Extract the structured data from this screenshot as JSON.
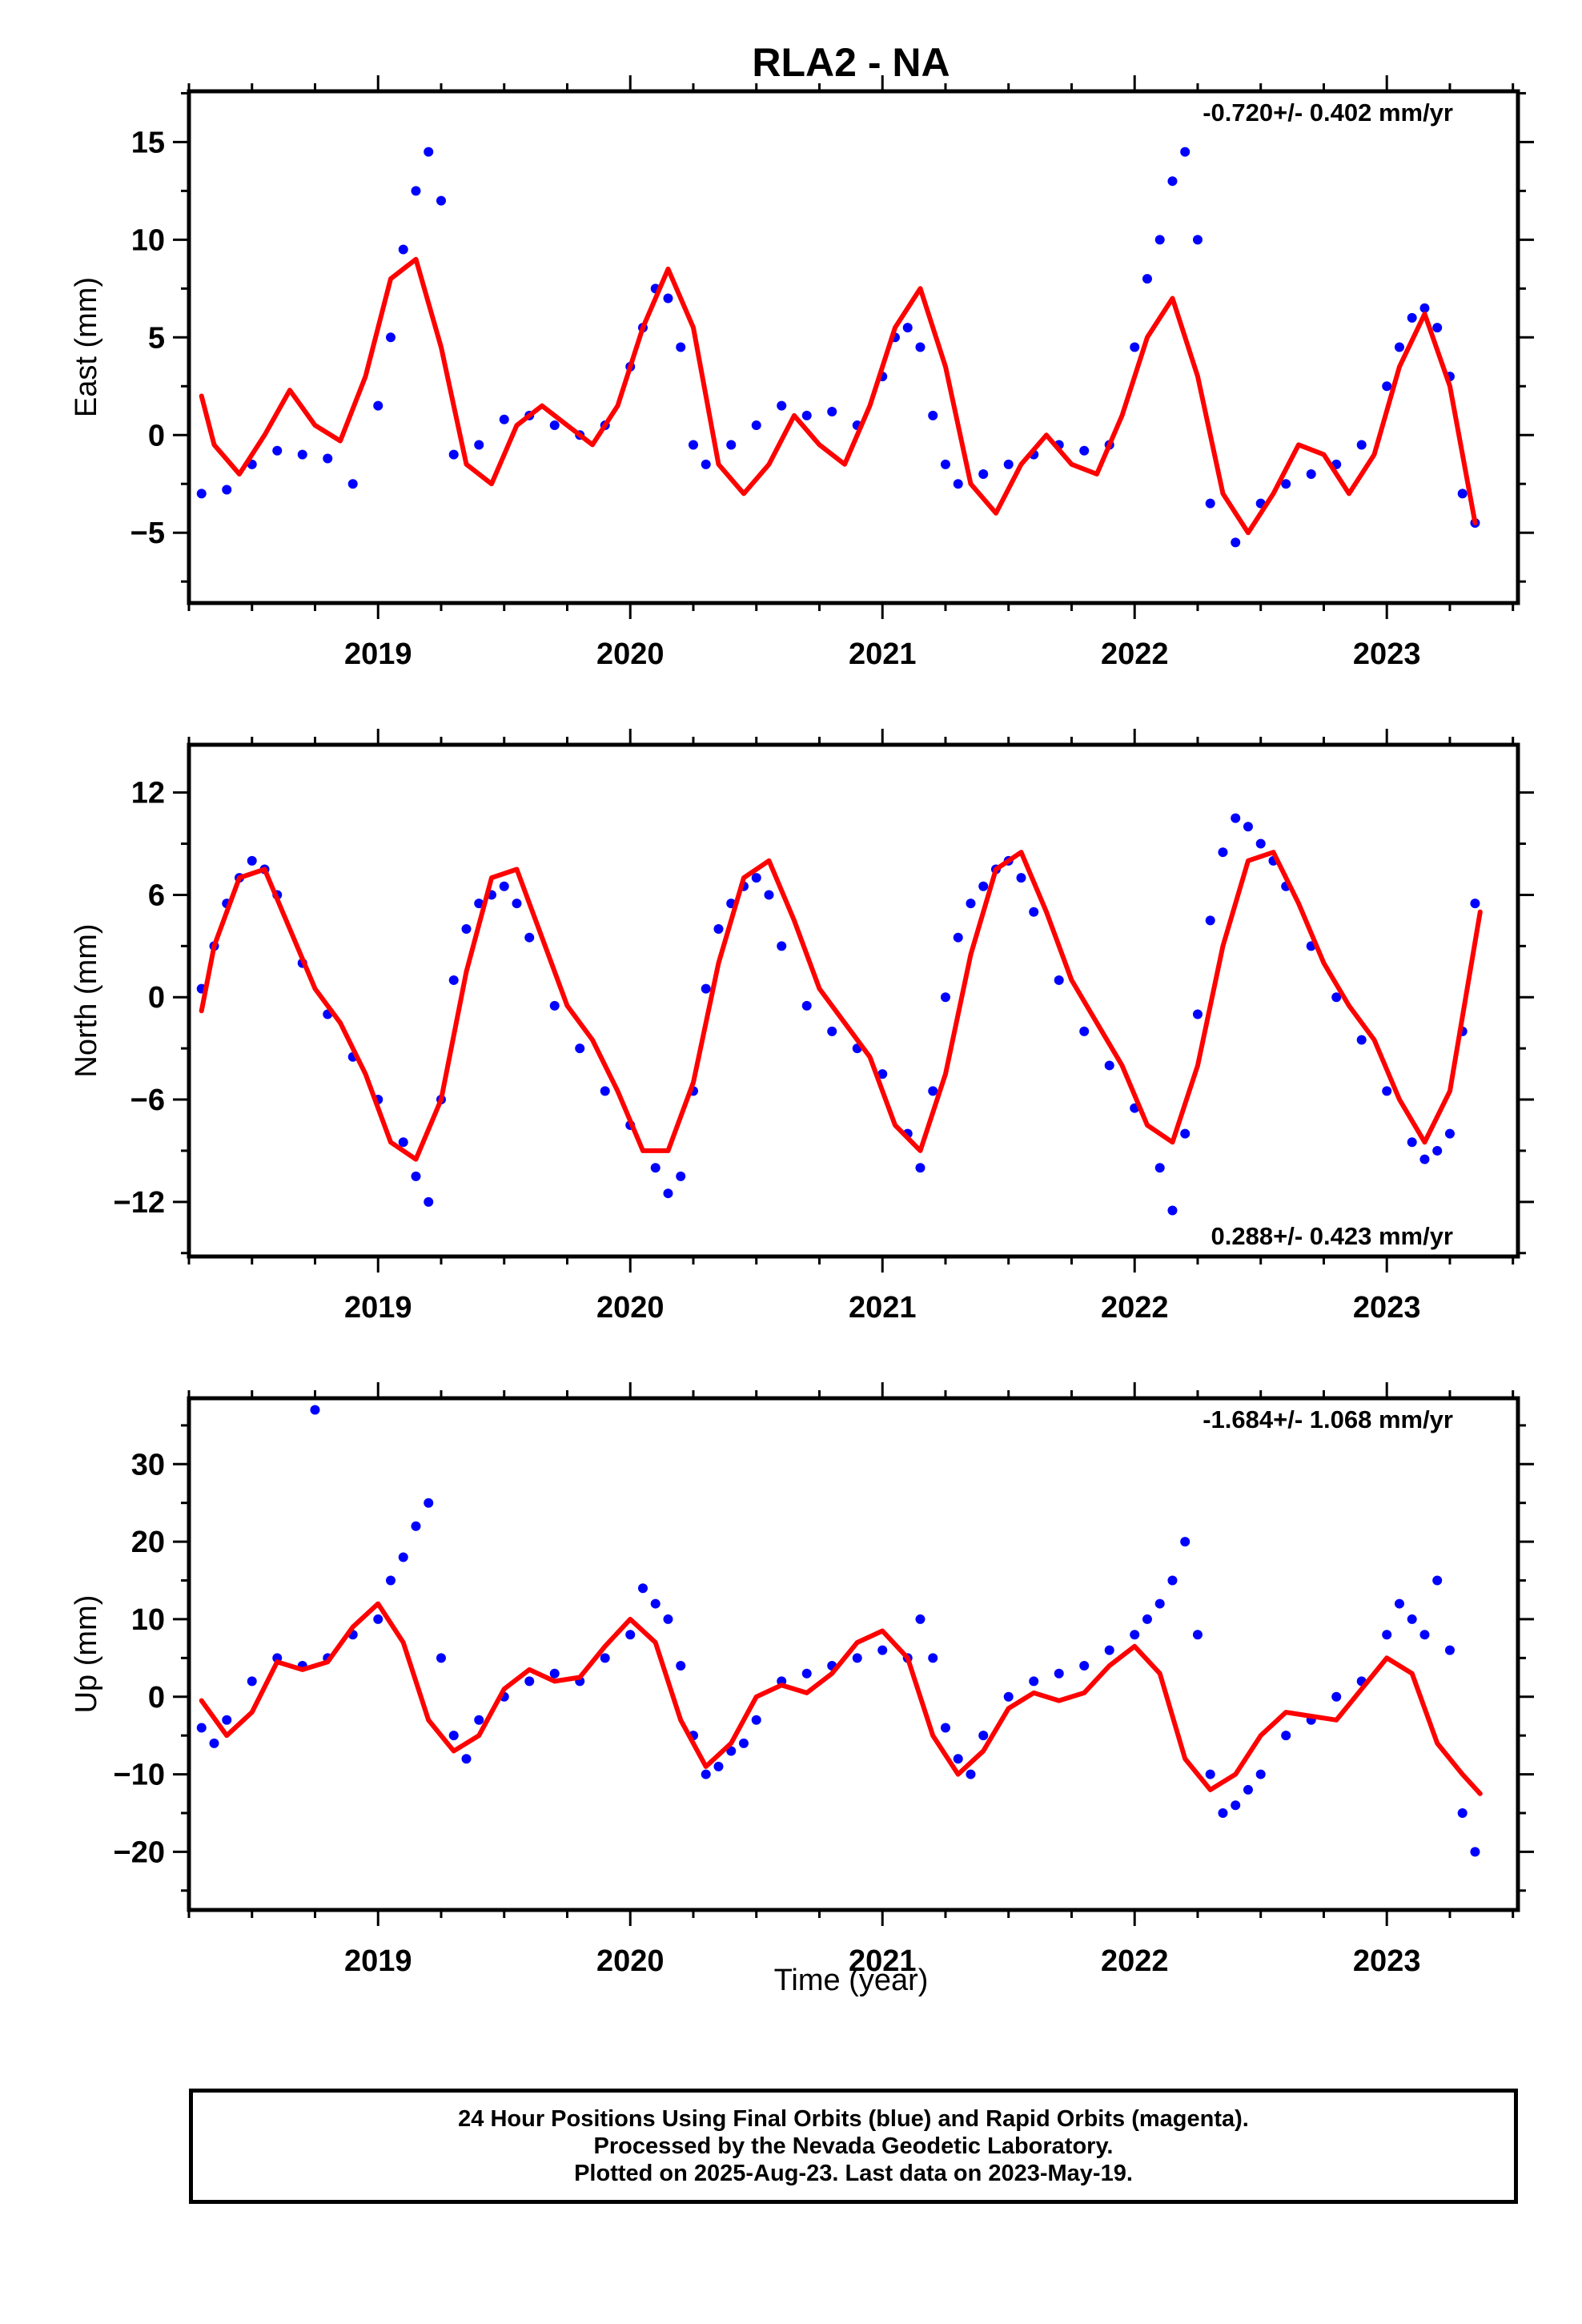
{
  "title": "RLA2 - NA",
  "footer": {
    "lines": [
      "24 Hour Positions Using Final Orbits (blue) and Rapid Orbits (magenta).",
      "Processed by the Nevada Geodetic Laboratory.",
      "Plotted on 2025-Aug-23. Last data on 2023-May-19."
    ]
  },
  "colors": {
    "observations": "#0000ff",
    "model": "#ff0000",
    "axes": "#000000"
  },
  "chart_data": [
    {
      "type": "scatter",
      "component": "east",
      "ylabel": "East (mm)",
      "xlabel": "",
      "rate_label": "-0.720+/- 0.402 mm/yr",
      "rate_position": "top-right",
      "xlim": [
        2018.25,
        2023.52
      ],
      "ylim": [
        -8.6,
        17.6
      ],
      "xticks": [
        2019,
        2020,
        2021,
        2022,
        2023
      ],
      "yticks": [
        -5,
        0,
        5,
        10,
        15
      ],
      "grid": false,
      "series": [
        {
          "style": "points",
          "color": "#0000ff",
          "x": [
            2018.3,
            2018.4,
            2018.5,
            2018.6,
            2018.7,
            2018.8,
            2018.9,
            2019.0,
            2019.05,
            2019.1,
            2019.15,
            2019.2,
            2019.25,
            2019.3,
            2019.4,
            2019.5,
            2019.6,
            2019.7,
            2019.8,
            2019.9,
            2020.0,
            2020.05,
            2020.1,
            2020.15,
            2020.2,
            2020.25,
            2020.3,
            2020.4,
            2020.5,
            2020.6,
            2020.7,
            2020.8,
            2020.9,
            2021.0,
            2021.05,
            2021.1,
            2021.15,
            2021.2,
            2021.25,
            2021.3,
            2021.4,
            2021.5,
            2021.6,
            2021.7,
            2021.8,
            2021.9,
            2022.0,
            2022.05,
            2022.1,
            2022.15,
            2022.2,
            2022.25,
            2022.3,
            2022.4,
            2022.5,
            2022.6,
            2022.7,
            2022.8,
            2022.9,
            2023.0,
            2023.05,
            2023.1,
            2023.15,
            2023.2,
            2023.25,
            2023.3,
            2023.35
          ],
          "y": [
            -3.0,
            -2.8,
            -1.5,
            -0.8,
            -1.0,
            -1.2,
            -2.5,
            1.5,
            5.0,
            9.5,
            12.5,
            14.5,
            12.0,
            -1.0,
            -0.5,
            0.8,
            1.0,
            0.5,
            0.0,
            0.5,
            3.5,
            5.5,
            7.5,
            7.0,
            4.5,
            -0.5,
            -1.5,
            -0.5,
            0.5,
            1.5,
            1.0,
            1.2,
            0.5,
            3.0,
            5.0,
            5.5,
            4.5,
            1.0,
            -1.5,
            -2.5,
            -2.0,
            -1.5,
            -1.0,
            -0.5,
            -0.8,
            -0.5,
            4.5,
            8.0,
            10.0,
            13.0,
            14.5,
            10.0,
            -3.5,
            -5.5,
            -3.5,
            -2.5,
            -2.0,
            -1.5,
            -0.5,
            2.5,
            4.5,
            6.0,
            6.5,
            5.5,
            3.0,
            -3.0,
            -4.5
          ]
        },
        {
          "style": "line",
          "color": "#ff0000",
          "x": [
            2018.3,
            2018.35,
            2018.45,
            2018.55,
            2018.65,
            2018.75,
            2018.85,
            2018.95,
            2019.05,
            2019.15,
            2019.25,
            2019.35,
            2019.45,
            2019.55,
            2019.65,
            2019.75,
            2019.85,
            2019.95,
            2020.05,
            2020.15,
            2020.25,
            2020.35,
            2020.45,
            2020.55,
            2020.65,
            2020.75,
            2020.85,
            2020.95,
            2021.05,
            2021.15,
            2021.25,
            2021.35,
            2021.45,
            2021.55,
            2021.65,
            2021.75,
            2021.85,
            2021.95,
            2022.05,
            2022.15,
            2022.25,
            2022.35,
            2022.45,
            2022.55,
            2022.65,
            2022.75,
            2022.85,
            2022.95,
            2023.05,
            2023.15,
            2023.25,
            2023.35
          ],
          "y": [
            2.0,
            -0.5,
            -2.0,
            0.0,
            2.3,
            0.5,
            -0.3,
            3.0,
            8.0,
            9.0,
            4.5,
            -1.5,
            -2.5,
            0.5,
            1.5,
            0.5,
            -0.5,
            1.5,
            5.5,
            8.5,
            5.5,
            -1.5,
            -3.0,
            -1.5,
            1.0,
            -0.5,
            -1.5,
            1.5,
            5.5,
            7.5,
            3.5,
            -2.5,
            -4.0,
            -1.5,
            0.0,
            -1.5,
            -2.0,
            1.0,
            5.0,
            7.0,
            3.0,
            -3.0,
            -5.0,
            -3.0,
            -0.5,
            -1.0,
            -3.0,
            -1.0,
            3.5,
            6.2,
            2.5,
            -4.5
          ]
        }
      ]
    },
    {
      "type": "scatter",
      "component": "north",
      "ylabel": "North (mm)",
      "xlabel": "",
      "rate_label": "0.288+/- 0.423 mm/yr",
      "rate_position": "bottom-right",
      "xlim": [
        2018.25,
        2023.52
      ],
      "ylim": [
        -15.2,
        14.8
      ],
      "xticks": [
        2019,
        2020,
        2021,
        2022,
        2023
      ],
      "yticks": [
        -12,
        -6,
        0,
        6,
        12
      ],
      "grid": false,
      "series": [
        {
          "style": "points",
          "color": "#0000ff",
          "x": [
            2018.3,
            2018.35,
            2018.4,
            2018.45,
            2018.5,
            2018.55,
            2018.6,
            2018.7,
            2018.8,
            2018.9,
            2019.0,
            2019.1,
            2019.15,
            2019.2,
            2019.25,
            2019.3,
            2019.35,
            2019.4,
            2019.45,
            2019.5,
            2019.55,
            2019.6,
            2019.7,
            2019.8,
            2019.9,
            2020.0,
            2020.1,
            2020.15,
            2020.2,
            2020.25,
            2020.3,
            2020.35,
            2020.4,
            2020.45,
            2020.5,
            2020.55,
            2020.6,
            2020.7,
            2020.8,
            2020.9,
            2021.0,
            2021.1,
            2021.15,
            2021.2,
            2021.25,
            2021.3,
            2021.35,
            2021.4,
            2021.45,
            2021.5,
            2021.55,
            2021.6,
            2021.7,
            2021.8,
            2021.9,
            2022.0,
            2022.1,
            2022.15,
            2022.2,
            2022.25,
            2022.3,
            2022.35,
            2022.4,
            2022.45,
            2022.5,
            2022.55,
            2022.6,
            2022.7,
            2022.8,
            2022.9,
            2023.0,
            2023.1,
            2023.15,
            2023.2,
            2023.25,
            2023.3,
            2023.35
          ],
          "y": [
            0.5,
            3.0,
            5.5,
            7.0,
            8.0,
            7.5,
            6.0,
            2.0,
            -1.0,
            -3.5,
            -6.0,
            -8.5,
            -10.5,
            -12.0,
            -6.0,
            1.0,
            4.0,
            5.5,
            6.0,
            6.5,
            5.5,
            3.5,
            -0.5,
            -3.0,
            -5.5,
            -7.5,
            -10.0,
            -11.5,
            -10.5,
            -5.5,
            0.5,
            4.0,
            5.5,
            6.5,
            7.0,
            6.0,
            3.0,
            -0.5,
            -2.0,
            -3.0,
            -4.5,
            -8.0,
            -10.0,
            -5.5,
            0.0,
            3.5,
            5.5,
            6.5,
            7.5,
            8.0,
            7.0,
            5.0,
            1.0,
            -2.0,
            -4.0,
            -6.5,
            -10.0,
            -12.5,
            -8.0,
            -1.0,
            4.5,
            8.5,
            10.5,
            10.0,
            9.0,
            8.0,
            6.5,
            3.0,
            0.0,
            -2.5,
            -5.5,
            -8.5,
            -9.5,
            -9.0,
            -8.0,
            -2.0,
            5.5
          ]
        },
        {
          "style": "line",
          "color": "#ff0000",
          "x": [
            2018.3,
            2018.35,
            2018.45,
            2018.55,
            2018.65,
            2018.75,
            2018.85,
            2018.95,
            2019.05,
            2019.15,
            2019.25,
            2019.35,
            2019.45,
            2019.55,
            2019.65,
            2019.75,
            2019.85,
            2019.95,
            2020.05,
            2020.15,
            2020.25,
            2020.35,
            2020.45,
            2020.55,
            2020.65,
            2020.75,
            2020.85,
            2020.95,
            2021.05,
            2021.15,
            2021.25,
            2021.35,
            2021.45,
            2021.55,
            2021.65,
            2021.75,
            2021.85,
            2021.95,
            2022.05,
            2022.15,
            2022.25,
            2022.35,
            2022.45,
            2022.55,
            2022.65,
            2022.75,
            2022.85,
            2022.95,
            2023.05,
            2023.15,
            2023.25,
            2023.37
          ],
          "y": [
            -0.8,
            3.0,
            7.0,
            7.5,
            4.0,
            0.5,
            -1.5,
            -4.5,
            -8.5,
            -9.5,
            -6.0,
            1.5,
            7.0,
            7.5,
            3.5,
            -0.5,
            -2.5,
            -5.5,
            -9.0,
            -9.0,
            -5.0,
            2.0,
            7.0,
            8.0,
            4.5,
            0.5,
            -1.5,
            -3.5,
            -7.5,
            -9.0,
            -4.5,
            2.5,
            7.5,
            8.5,
            5.0,
            1.0,
            -1.5,
            -4.0,
            -7.5,
            -8.5,
            -4.0,
            3.0,
            8.0,
            8.5,
            5.5,
            2.0,
            -0.5,
            -2.5,
            -6.0,
            -8.5,
            -5.5,
            5.0
          ]
        }
      ]
    },
    {
      "type": "scatter",
      "component": "up",
      "ylabel": "Up (mm)",
      "xlabel": "Time (year)",
      "rate_label": "-1.684+/- 1.068 mm/yr",
      "rate_position": "top-right",
      "xlim": [
        2018.25,
        2023.52
      ],
      "ylim": [
        -27.5,
        38.5
      ],
      "xticks": [
        2019,
        2020,
        2021,
        2022,
        2023
      ],
      "yticks": [
        -20,
        -10,
        0,
        10,
        20,
        30
      ],
      "grid": false,
      "series": [
        {
          "style": "points",
          "color": "#0000ff",
          "x": [
            2018.3,
            2018.35,
            2018.4,
            2018.5,
            2018.6,
            2018.7,
            2018.75,
            2018.8,
            2018.9,
            2019.0,
            2019.05,
            2019.1,
            2019.15,
            2019.2,
            2019.25,
            2019.3,
            2019.35,
            2019.4,
            2019.5,
            2019.6,
            2019.7,
            2019.8,
            2019.9,
            2020.0,
            2020.05,
            2020.1,
            2020.15,
            2020.2,
            2020.25,
            2020.3,
            2020.35,
            2020.4,
            2020.45,
            2020.5,
            2020.6,
            2020.7,
            2020.8,
            2020.9,
            2021.0,
            2021.1,
            2021.15,
            2021.2,
            2021.25,
            2021.3,
            2021.35,
            2021.4,
            2021.5,
            2021.6,
            2021.7,
            2021.8,
            2021.9,
            2022.0,
            2022.05,
            2022.1,
            2022.15,
            2022.2,
            2022.25,
            2022.3,
            2022.35,
            2022.4,
            2022.45,
            2022.5,
            2022.6,
            2022.7,
            2022.8,
            2022.9,
            2023.0,
            2023.05,
            2023.1,
            2023.15,
            2023.2,
            2023.25,
            2023.3,
            2023.35
          ],
          "y": [
            -4.0,
            -6.0,
            -3.0,
            2.0,
            5.0,
            4.0,
            37.0,
            5.0,
            8.0,
            10.0,
            15.0,
            18.0,
            22.0,
            25.0,
            5.0,
            -5.0,
            -8.0,
            -3.0,
            0.0,
            2.0,
            3.0,
            2.0,
            5.0,
            8.0,
            14.0,
            12.0,
            10.0,
            4.0,
            -5.0,
            -10.0,
            -9.0,
            -7.0,
            -6.0,
            -3.0,
            2.0,
            3.0,
            4.0,
            5.0,
            6.0,
            5.0,
            10.0,
            5.0,
            -4.0,
            -8.0,
            -10.0,
            -5.0,
            0.0,
            2.0,
            3.0,
            4.0,
            6.0,
            8.0,
            10.0,
            12.0,
            15.0,
            20.0,
            8.0,
            -10.0,
            -15.0,
            -14.0,
            -12.0,
            -10.0,
            -5.0,
            -3.0,
            0.0,
            2.0,
            8.0,
            12.0,
            10.0,
            8.0,
            15.0,
            6.0,
            -15.0,
            -20.0
          ]
        },
        {
          "style": "line",
          "color": "#ff0000",
          "x": [
            2018.3,
            2018.4,
            2018.5,
            2018.6,
            2018.7,
            2018.8,
            2018.9,
            2019.0,
            2019.1,
            2019.2,
            2019.3,
            2019.4,
            2019.5,
            2019.6,
            2019.7,
            2019.8,
            2019.9,
            2020.0,
            2020.1,
            2020.2,
            2020.3,
            2020.4,
            2020.5,
            2020.6,
            2020.7,
            2020.8,
            2020.9,
            2021.0,
            2021.1,
            2021.2,
            2021.3,
            2021.4,
            2021.5,
            2021.6,
            2021.7,
            2021.8,
            2021.9,
            2022.0,
            2022.1,
            2022.2,
            2022.3,
            2022.4,
            2022.5,
            2022.6,
            2022.7,
            2022.8,
            2022.9,
            2023.0,
            2023.1,
            2023.2,
            2023.3,
            2023.37
          ],
          "y": [
            -0.5,
            -5.0,
            -2.0,
            4.5,
            3.5,
            4.5,
            9.0,
            12.0,
            7.0,
            -3.0,
            -7.0,
            -5.0,
            1.0,
            3.5,
            2.0,
            2.5,
            6.5,
            10.0,
            7.0,
            -3.0,
            -9.0,
            -6.0,
            0.0,
            1.5,
            0.5,
            3.0,
            7.0,
            8.5,
            5.0,
            -5.0,
            -10.0,
            -7.0,
            -1.5,
            0.5,
            -0.5,
            0.5,
            4.0,
            6.5,
            3.0,
            -8.0,
            -12.0,
            -10.0,
            -5.0,
            -2.0,
            -2.5,
            -3.0,
            1.0,
            5.0,
            3.0,
            -6.0,
            -10.0,
            -12.5
          ]
        }
      ]
    }
  ]
}
